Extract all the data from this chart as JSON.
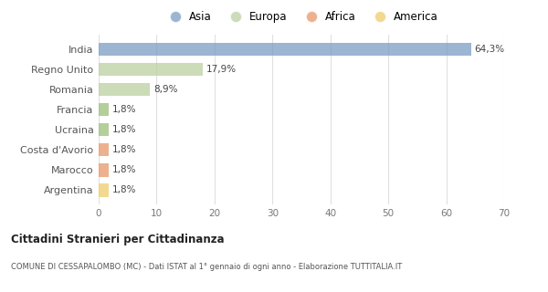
{
  "categories": [
    "India",
    "Regno Unito",
    "Romania",
    "Francia",
    "Ucraina",
    "Costa d'Avorio",
    "Marocco",
    "Argentina"
  ],
  "values": [
    64.3,
    17.9,
    8.9,
    1.8,
    1.8,
    1.8,
    1.8,
    1.8
  ],
  "labels": [
    "64,3%",
    "17,9%",
    "8,9%",
    "1,8%",
    "1,8%",
    "1,8%",
    "1,8%",
    "1,8%"
  ],
  "colors": [
    "#7a9cc4",
    "#bccfa0",
    "#bccfa0",
    "#9bbf7a",
    "#9bbf7a",
    "#e8976a",
    "#e8976a",
    "#f0cc6a"
  ],
  "legend_labels": [
    "Asia",
    "Europa",
    "Africa",
    "America"
  ],
  "legend_colors": [
    "#7a9cc4",
    "#bccfa0",
    "#e8976a",
    "#f0cc6a"
  ],
  "xlim": [
    0,
    70
  ],
  "xticks": [
    0,
    10,
    20,
    30,
    40,
    50,
    60,
    70
  ],
  "title_bold": "Cittadini Stranieri per Cittadinanza",
  "subtitle": "COMUNE DI CESSAPALOMBO (MC) - Dati ISTAT al 1° gennaio di ogni anno - Elaborazione TUTTITALIA.IT",
  "fig_bg": "#ffffff",
  "plot_bg": "#ffffff",
  "grid_color": "#e0e0e0",
  "bar_height": 0.65
}
